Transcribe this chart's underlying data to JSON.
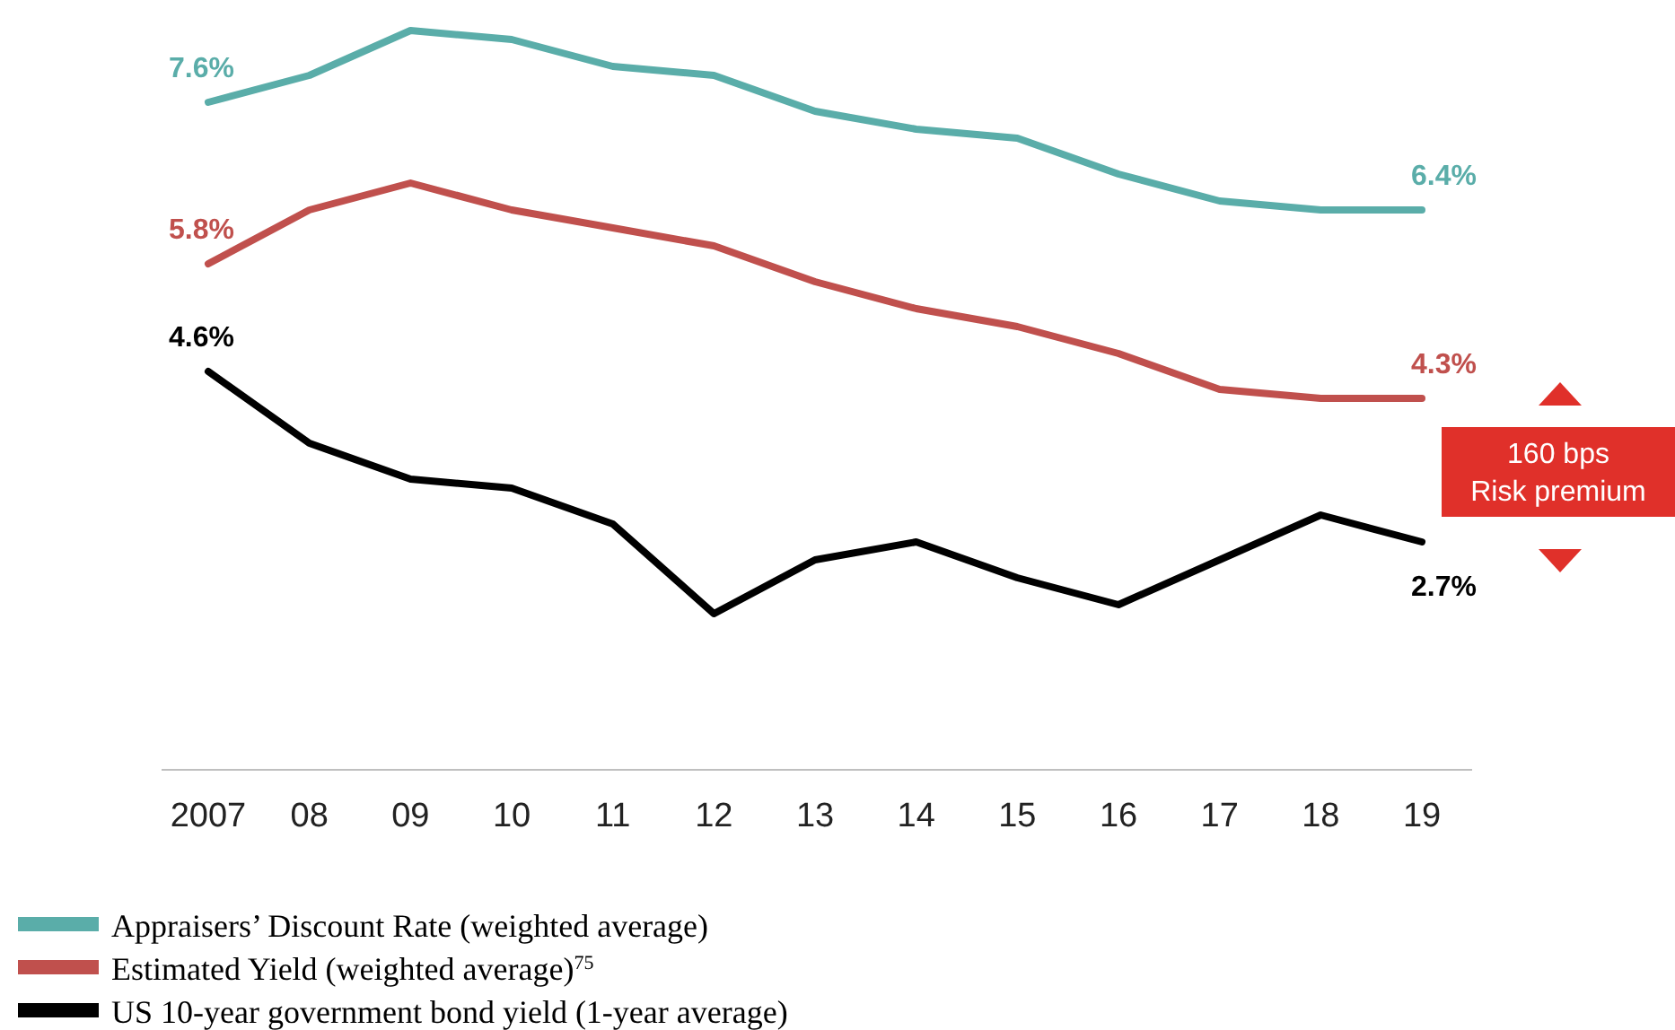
{
  "chart_data": {
    "type": "line",
    "categories": [
      "2007",
      "08",
      "09",
      "10",
      "11",
      "12",
      "13",
      "14",
      "15",
      "16",
      "17",
      "18",
      "19"
    ],
    "tick_labels": "x",
    "marker": "none",
    "line_style": "solid",
    "legend": "bottom",
    "series": [
      {
        "name": "Appraisers’ Discount Rate (weighted average)",
        "color": "#5aada9",
        "values": [
          7.6,
          7.9,
          8.4,
          8.3,
          8.0,
          7.9,
          7.5,
          7.3,
          7.2,
          6.8,
          6.5,
          6.4,
          6.4
        ],
        "value_labels": [
          "7.6%",
          null,
          null,
          null,
          null,
          null,
          null,
          null,
          null,
          null,
          null,
          null,
          "6.4%"
        ]
      },
      {
        "name": "Estimated Yield (weighted average)$^{75}$",
        "color": "#c0504d",
        "values": [
          5.8,
          6.4,
          6.7,
          6.4,
          6.2,
          6.0,
          5.6,
          5.3,
          5.1,
          4.8,
          4.4,
          4.3,
          4.3
        ],
        "value_labels": [
          "5.8%",
          null,
          null,
          null,
          null,
          null,
          null,
          null,
          null,
          null,
          null,
          null,
          "4.3%"
        ]
      },
      {
        "name": "US 10-year government bond yield (1-year average)",
        "color": "#000000",
        "values": [
          4.6,
          3.8,
          3.4,
          3.3,
          2.9,
          1.9,
          2.5,
          2.7,
          2.3,
          2.0,
          2.5,
          3.0,
          2.7
        ],
        "value_labels": [
          "4.6%",
          null,
          null,
          null,
          null,
          null,
          null,
          null,
          null,
          null,
          null,
          null,
          "2.7%"
        ]
      }
    ],
    "annotations": [
      "160 bps\nRisk premium"
    ]
  }
}
